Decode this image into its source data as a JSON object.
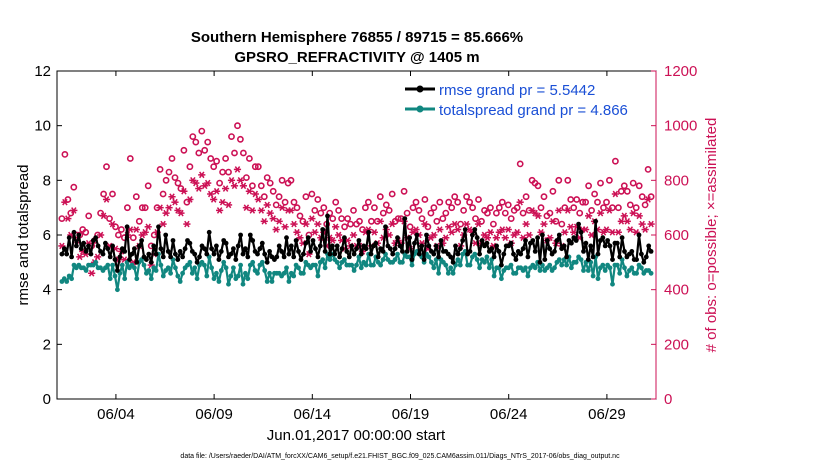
{
  "chart_data": {
    "type": "line",
    "title_line1": "Southern Hemisphere 76855 / 89715 = 85.666%",
    "title_line2": "GPSRO_REFRACTIVITY @ 1405 m",
    "xlabel": "Jun.01,2017 00:00:00 start",
    "ylabel_left": "rmse and totalspread",
    "ylabel_right": "# of obs: o=possible; ×=assimilated",
    "footnote": "data file: /Users/raeder/DAI/ATM_forcXX/CAM6_setup/f.e21.FHIST_BGC.f09_025.CAM6assim.011/Diags_NTrS_2017-06/obs_diag_output.nc",
    "xlim": [
      0,
      30.5
    ],
    "ylim_left": [
      0,
      12
    ],
    "ylim_right": [
      0,
      1200
    ],
    "x_ticks": [
      3,
      8,
      13,
      18,
      23,
      28
    ],
    "x_tick_labels": [
      "06/04",
      "06/09",
      "06/14",
      "06/19",
      "06/24",
      "06/29"
    ],
    "y_ticks_left": [
      0,
      2,
      4,
      6,
      8,
      10,
      12
    ],
    "y_tick_labels_left": [
      "0",
      "2",
      "4",
      "6",
      "8",
      "10",
      "12"
    ],
    "y_ticks_right": [
      0,
      200,
      400,
      600,
      800,
      1000,
      1200
    ],
    "y_tick_labels_right": [
      "0",
      "200",
      "400",
      "600",
      "800",
      "1000",
      "1200"
    ],
    "colors": {
      "rmse": "#000000",
      "spread": "#118780",
      "obs": "#cc1155",
      "legend_text": "#1a4fd6"
    },
    "series": [
      {
        "name": "rmse grand pr = 5.5442",
        "axis": "left",
        "marker": "dot",
        "values": [
          5.3,
          5.5,
          5.3,
          5.9,
          5.2,
          6.1,
          5.6,
          6.0,
          5.5,
          5.7,
          5.4,
          5.6,
          5.3,
          5.8,
          5.9,
          5.6,
          5.4,
          5.3,
          5.7,
          5.5,
          5.2,
          5.6,
          5.1,
          4.7,
          5.2,
          5.5,
          5.4,
          6.3,
          5.1,
          5.3,
          5.5,
          5.0,
          5.6,
          5.8,
          5.2,
          5.1,
          5.3,
          5.0,
          5.6,
          5.3,
          6.3,
          5.5,
          5.2,
          6.0,
          5.4,
          5.2,
          5.8,
          5.3,
          5.1,
          5.4,
          5.2,
          5.5,
          5.8,
          5.7,
          5.4,
          5.3,
          5.0,
          5.2,
          5.6,
          5.5,
          5.3,
          6.1,
          5.5,
          5.3,
          5.6,
          5.1,
          5.4,
          5.8,
          5.7,
          5.2,
          5.3,
          5.5,
          5.1,
          5.6,
          6.0,
          5.3,
          5.5,
          5.2,
          6.0,
          5.8,
          5.4,
          5.3,
          5.5,
          5.7,
          5.3,
          5.0,
          5.4,
          5.2,
          5.1,
          5.2,
          5.6,
          5.4,
          5.2,
          5.9,
          5.3,
          5.6,
          5.2,
          5.8,
          5.4,
          5.1,
          5.3,
          5.7,
          5.9,
          5.4,
          5.8,
          5.5,
          5.2,
          5.6,
          6.2,
          5.4,
          6.7,
          5.3,
          5.6,
          5.3,
          5.6,
          5.2,
          5.5,
          5.9,
          5.4,
          5.2,
          5.6,
          5.3,
          5.5,
          5.8,
          5.3,
          5.6,
          5.5,
          6.1,
          5.3,
          5.6,
          5.7,
          5.2,
          5.5,
          5.4,
          6.3,
          5.6,
          5.5,
          5.3,
          5.5,
          5.9,
          5.6,
          5.4,
          6.6,
          5.4,
          5.9,
          5.1,
          5.7,
          6.0,
          5.3,
          5.6,
          5.1,
          6.0,
          5.6,
          5.4,
          5.3,
          5.6,
          5.2,
          5.8,
          5.4,
          5.4,
          5.3,
          5.2,
          5.0,
          5.6,
          5.3,
          5.5,
          5.8,
          6.2,
          5.3,
          5.4,
          6.0,
          6.2,
          5.9,
          5.3,
          5.8,
          5.6,
          5.7,
          5.4,
          5.5,
          5.2,
          5.6,
          5.4,
          4.9,
          5.3,
          5.6,
          5.6,
          5.7,
          5.3,
          5.1,
          5.4,
          5.3,
          5.5,
          5.8,
          5.2,
          5.7,
          5.8,
          5.4,
          5.9,
          5.0,
          6.0,
          5.1,
          5.8,
          5.5,
          5.3,
          5.4,
          5.8,
          6.0,
          5.5,
          5.6,
          5.2,
          5.8,
          5.7,
          5.9,
          5.8,
          6.4,
          6.1,
          5.4,
          5.7,
          5.1,
          5.6,
          5.2,
          6.5,
          5.3,
          5.8,
          5.9,
          5.6,
          5.8,
          5.6,
          5.1,
          5.7,
          5.7,
          5.2,
          5.9,
          5.4,
          5.2,
          5.3,
          5.4,
          5.1,
          5.1,
          6.0,
          5.3,
          5.0,
          5.2,
          5.6,
          5.4
        ]
      },
      {
        "name": "totalspread grand pr = 4.866",
        "axis": "left",
        "marker": "dot",
        "values": [
          4.3,
          4.4,
          4.3,
          4.5,
          4.4,
          4.9,
          4.8,
          4.9,
          4.8,
          4.8,
          4.7,
          4.9,
          4.9,
          4.9,
          5.0,
          4.8,
          4.8,
          4.7,
          4.8,
          4.9,
          4.4,
          4.9,
          4.5,
          4.0,
          4.6,
          4.9,
          4.4,
          5.0,
          4.8,
          4.9,
          4.8,
          4.4,
          5.0,
          5.1,
          4.9,
          4.6,
          4.7,
          4.4,
          4.8,
          4.7,
          5.3,
          4.9,
          4.5,
          4.7,
          4.8,
          4.6,
          5.1,
          4.8,
          4.5,
          4.3,
          4.6,
          4.8,
          4.9,
          5.0,
          4.6,
          4.8,
          4.4,
          4.9,
          5.0,
          4.9,
          4.5,
          5.2,
          4.8,
          4.4,
          4.6,
          4.3,
          4.7,
          5.0,
          4.8,
          4.2,
          4.5,
          4.8,
          4.4,
          4.5,
          4.9,
          4.2,
          4.6,
          4.4,
          4.9,
          5.0,
          4.7,
          4.6,
          4.9,
          5.0,
          4.7,
          4.3,
          4.6,
          4.3,
          4.6,
          4.6,
          4.6,
          4.5,
          4.6,
          4.8,
          4.3,
          4.6,
          4.5,
          4.9,
          4.8,
          4.6,
          4.6,
          5.0,
          4.9,
          4.8,
          4.9,
          4.9,
          4.5,
          5.0,
          5.1,
          4.8,
          5.3,
          5.1,
          5.3,
          5.1,
          5.0,
          4.8,
          5.0,
          5.1,
          4.9,
          4.9,
          4.9,
          4.7,
          4.9,
          5.2,
          4.8,
          5.0,
          4.9,
          5.3,
          4.9,
          4.9,
          5.2,
          5.0,
          4.9,
          5.1,
          5.3,
          5.1,
          5.0,
          5.0,
          5.1,
          5.3,
          5.0,
          5.0,
          5.3,
          5.2,
          5.2,
          4.9,
          5.3,
          5.4,
          5.3,
          5.2,
          5.0,
          5.3,
          5.2,
          5.0,
          4.8,
          5.1,
          4.6,
          5.1,
          5.0,
          4.9,
          4.6,
          4.8,
          4.6,
          4.9,
          5.1,
          4.9,
          5.3,
          5.4,
          4.9,
          4.9,
          5.2,
          5.3,
          5.1,
          4.8,
          5.1,
          5.0,
          5.2,
          4.8,
          5.1,
          4.5,
          4.8,
          4.8,
          4.4,
          4.7,
          4.8,
          4.8,
          4.9,
          4.6,
          4.6,
          4.8,
          4.8,
          4.7,
          4.8,
          4.5,
          4.8,
          4.9,
          4.8,
          5.0,
          4.7,
          4.9,
          4.7,
          4.8,
          4.9,
          4.7,
          4.8,
          5.0,
          5.1,
          4.9,
          5.1,
          4.9,
          5.2,
          4.8,
          5.0,
          5.0,
          5.2,
          5.1,
          4.7,
          5.0,
          4.7,
          5.0,
          4.5,
          5.2,
          4.4,
          4.8,
          4.9,
          4.7,
          4.9,
          4.8,
          4.2,
          4.9,
          4.9,
          4.6,
          5.1,
          4.8,
          4.5,
          4.7,
          4.8,
          4.6,
          4.6,
          4.9,
          4.8,
          4.6,
          4.7,
          4.7,
          4.6
        ]
      },
      {
        "name": "possible",
        "axis": "right",
        "marker": "circle",
        "values": [
          660,
          895,
          730,
          680,
          775,
          600,
          600,
          620,
          610,
          670,
          560,
          580,
          600,
          680,
          750,
          850,
          660,
          750,
          630,
          600,
          620,
          590,
          700,
          880,
          590,
          740,
          650,
          700,
          700,
          780,
          560,
          600,
          700,
          840,
          750,
          800,
          830,
          880,
          810,
          790,
          770,
          910,
          720,
          850,
          960,
          940,
          900,
          980,
          910,
          940,
          880,
          850,
          870,
          790,
          830,
          880,
          830,
          960,
          900,
          1000,
          950,
          900,
          810,
          880,
          780,
          850,
          850,
          780,
          740,
          810,
          790,
          760,
          710,
          740,
          800,
          720,
          790,
          800,
          720,
          700,
          670,
          650,
          740,
          600,
          750,
          690,
          730,
          680,
          700,
          640,
          680,
          660,
          720,
          690,
          660,
          630,
          660,
          640,
          690,
          640,
          650,
          620,
          700,
          720,
          650,
          700,
          650,
          740,
          680,
          710,
          690,
          750,
          650,
          660,
          660,
          760,
          680,
          630,
          700,
          720,
          690,
          660,
          730,
          630,
          680,
          700,
          650,
          720,
          660,
          680,
          720,
          700,
          740,
          720,
          640,
          690,
          740,
          720,
          700,
          660,
          730,
          650,
          690,
          680,
          700,
          640,
          680,
          700,
          720,
          680,
          710,
          660,
          690,
          700,
          860,
          680,
          740,
          690,
          800,
          790,
          780,
          700,
          740,
          670,
          680,
          760,
          650,
          800,
          640,
          700,
          800,
          730,
          700,
          730,
          680,
          720,
          720,
          780,
          690,
          750,
          720,
          790,
          700,
          720,
          800,
          700,
          870,
          700,
          760,
          780,
          760,
          710,
          790,
          700,
          780,
          740,
          710,
          840,
          740
        ]
      },
      {
        "name": "assimilated",
        "axis": "right",
        "marker": "star",
        "values": [
          560,
          720,
          660,
          600,
          690,
          580,
          520,
          540,
          530,
          570,
          460,
          500,
          520,
          600,
          670,
          730,
          560,
          640,
          550,
          510,
          540,
          510,
          600,
          620,
          500,
          620,
          560,
          600,
          610,
          630,
          490,
          530,
          610,
          700,
          640,
          680,
          700,
          740,
          720,
          690,
          680,
          760,
          640,
          730,
          800,
          790,
          770,
          820,
          780,
          790,
          750,
          730,
          760,
          690,
          720,
          770,
          710,
          800,
          780,
          840,
          800,
          780,
          700,
          760,
          690,
          750,
          730,
          690,
          650,
          710,
          680,
          660,
          620,
          650,
          700,
          630,
          690,
          690,
          640,
          610,
          590,
          570,
          640,
          530,
          660,
          610,
          640,
          590,
          610,
          560,
          590,
          580,
          630,
          600,
          580,
          550,
          580,
          560,
          600,
          560,
          560,
          540,
          610,
          620,
          560,
          610,
          570,
          650,
          590,
          620,
          600,
          640,
          570,
          580,
          570,
          650,
          590,
          550,
          610,
          620,
          600,
          570,
          640,
          550,
          590,
          600,
          560,
          620,
          570,
          590,
          630,
          610,
          640,
          620,
          560,
          600,
          640,
          620,
          610,
          570,
          640,
          570,
          600,
          590,
          610,
          560,
          590,
          610,
          620,
          590,
          620,
          570,
          600,
          610,
          720,
          590,
          640,
          600,
          690,
          680,
          670,
          610,
          640,
          580,
          590,
          650,
          570,
          690,
          560,
          610,
          690,
          630,
          610,
          630,
          590,
          620,
          620,
          670,
          600,
          650,
          620,
          680,
          610,
          620,
          690,
          610,
          750,
          610,
          650,
          670,
          650,
          620,
          680,
          610,
          670,
          640,
          620,
          730,
          640
        ]
      }
    ],
    "legend": [
      {
        "label": "rmse grand pr = 5.5442",
        "series": "rmse"
      },
      {
        "label": "totalspread grand pr = 4.866",
        "series": "spread"
      }
    ]
  }
}
